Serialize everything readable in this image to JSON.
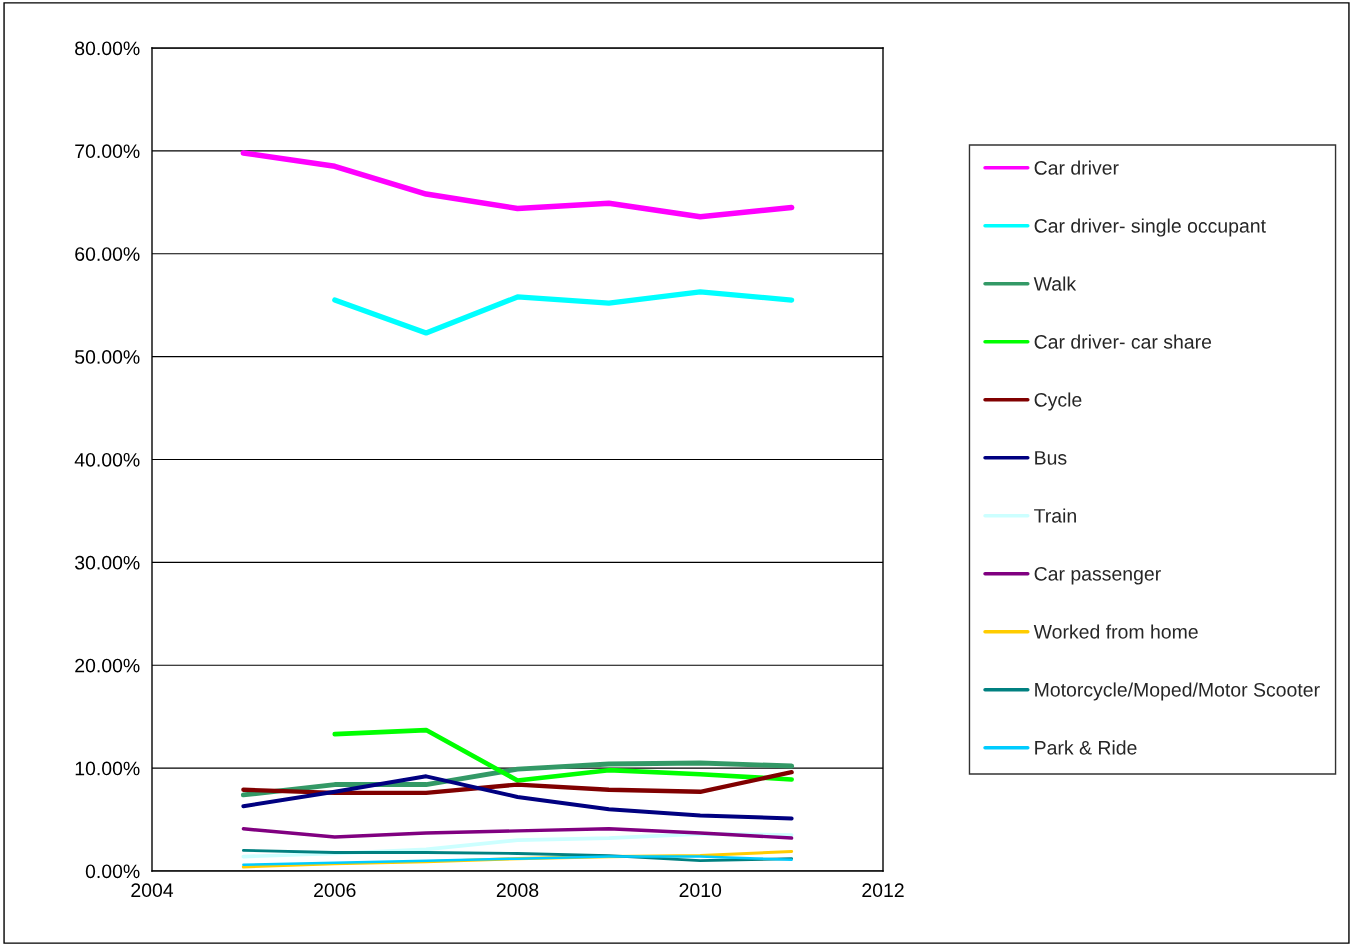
{
  "chart_data": {
    "type": "line",
    "x": [
      2005,
      2006,
      2007,
      2008,
      2009,
      2010,
      2011
    ],
    "series": [
      {
        "name": "Car driver",
        "color": "#ff00ff",
        "values": [
          69.8,
          68.5,
          65.8,
          64.4,
          64.9,
          63.6,
          64.5
        ]
      },
      {
        "name": "Car driver- single occupant",
        "color": "#00ffff",
        "values": [
          null,
          55.5,
          52.3,
          55.8,
          55.2,
          56.3,
          55.5
        ]
      },
      {
        "name": "Walk",
        "color": "#339966",
        "values": [
          7.4,
          8.4,
          8.4,
          9.9,
          10.4,
          10.5,
          10.2
        ]
      },
      {
        "name": "Car driver- car share",
        "color": "#00ff00",
        "values": [
          null,
          13.3,
          13.7,
          8.8,
          9.8,
          9.4,
          8.9
        ]
      },
      {
        "name": "Cycle",
        "color": "#800000",
        "values": [
          7.9,
          7.6,
          7.6,
          8.4,
          7.9,
          7.7,
          9.6
        ]
      },
      {
        "name": "Bus",
        "color": "#000080",
        "values": [
          6.3,
          7.7,
          9.2,
          7.2,
          6.0,
          5.4,
          5.1
        ]
      },
      {
        "name": "Train",
        "color": "#ccffff",
        "values": [
          1.4,
          1.7,
          2.1,
          3.0,
          3.2,
          3.6,
          3.5
        ]
      },
      {
        "name": "Car passenger",
        "color": "#800080",
        "values": [
          4.1,
          3.3,
          3.7,
          3.9,
          4.1,
          3.7,
          3.2
        ]
      },
      {
        "name": "Worked from home",
        "color": "#ffcc00",
        "values": [
          0.4,
          0.7,
          0.9,
          1.2,
          1.4,
          1.5,
          1.9
        ]
      },
      {
        "name": "Motorcycle/Moped/Motor Scooter",
        "color": "#008080",
        "values": [
          2.0,
          1.8,
          1.8,
          1.7,
          1.5,
          1.0,
          1.2
        ]
      },
      {
        "name": "Park & Ride",
        "color": "#00ccff",
        "values": [
          0.6,
          0.8,
          1.0,
          1.2,
          1.4,
          1.4,
          1.1
        ]
      }
    ],
    "xlim": [
      2004,
      2012
    ],
    "xticks": [
      2004,
      2006,
      2008,
      2010,
      2012
    ],
    "ylim": [
      0,
      80
    ],
    "yticks": [
      {
        "value": 0,
        "label": "0.00%"
      },
      {
        "value": 10,
        "label": "10.00%"
      },
      {
        "value": 20,
        "label": "20.00%"
      },
      {
        "value": 30,
        "label": "30.00%"
      },
      {
        "value": 40,
        "label": "40.00%"
      },
      {
        "value": 50,
        "label": "50.00%"
      },
      {
        "value": 60,
        "label": "60.00%"
      },
      {
        "value": 70,
        "label": "70.00%"
      },
      {
        "value": 80,
        "label": "80.00%"
      }
    ],
    "grid": "y",
    "legend": "right",
    "marker": "none",
    "line_style": "solid"
  }
}
